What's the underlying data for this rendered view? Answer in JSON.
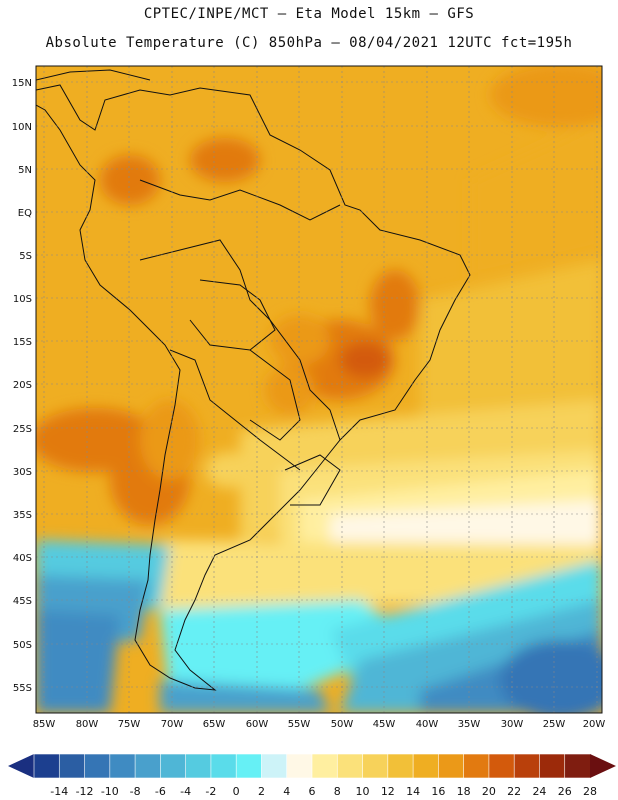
{
  "header": {
    "line1": "CPTEC/INPE/MCT –   Eta Model 15km – GFS",
    "line2": "Absolute Temperature (C) 850hPa – 08/04/2021 12UTC fct=195h"
  },
  "map": {
    "lat_labels": [
      "15N",
      "10N",
      "5N",
      "EQ",
      "5S",
      "10S",
      "15S",
      "20S",
      "25S",
      "30S",
      "35S",
      "40S",
      "45S",
      "50S",
      "55S"
    ],
    "lon_labels": [
      "85W",
      "80W",
      "75W",
      "70W",
      "65W",
      "60W",
      "55W",
      "50W",
      "45W",
      "40W",
      "35W",
      "30W",
      "25W",
      "20W"
    ]
  },
  "colorbar": {
    "labels": [
      "-14",
      "-12",
      "-10",
      "-8",
      "-6",
      "-4",
      "-2",
      "0",
      "2",
      "4",
      "6",
      "8",
      "10",
      "12",
      "14",
      "16",
      "18",
      "20",
      "22",
      "24",
      "26",
      "28"
    ],
    "colors": [
      "#1c3f8f",
      "#2b5ea3",
      "#3575b5",
      "#3f8bc2",
      "#49a0cc",
      "#4fb6d6",
      "#55cbe0",
      "#5adcea",
      "#66f0f5",
      "#cdf3f8",
      "#fff8e6",
      "#ffefa0",
      "#fbe17a",
      "#f7d25a",
      "#f2c038",
      "#efae22",
      "#eb9918",
      "#e27a10",
      "#d35a0c",
      "#b9400b",
      "#9c2a0a",
      "#7f1d10"
    ],
    "underflow_color": "#1a2f80",
    "overflow_color": "#6a0f10"
  }
}
